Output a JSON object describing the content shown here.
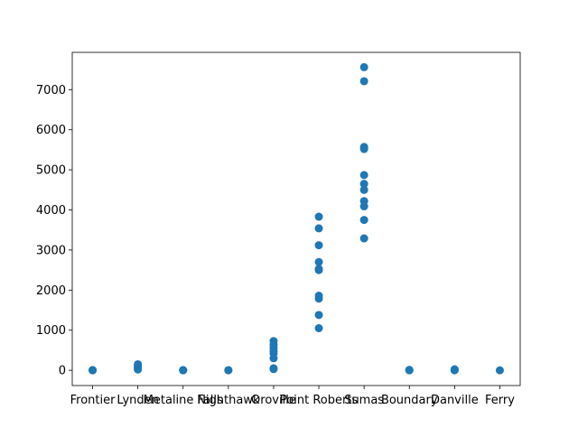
{
  "chart_data": {
    "type": "scatter",
    "categories": [
      "Frontier",
      "Lynden",
      "Metaline Falls",
      "Nighthawk",
      "Oroville",
      "Point Roberts",
      "Sumas",
      "Boundary",
      "Danville",
      "Ferry"
    ],
    "series": [
      {
        "color": "#1f77b4",
        "x": [
          "Frontier",
          "Frontier",
          "Frontier",
          "Lynden",
          "Lynden",
          "Lynden",
          "Lynden",
          "Lynden",
          "Metaline Falls",
          "Metaline Falls",
          "Metaline Falls",
          "Nighthawk",
          "Nighthawk",
          "Oroville",
          "Oroville",
          "Oroville",
          "Oroville",
          "Oroville",
          "Oroville",
          "Oroville",
          "Oroville",
          "Point Roberts",
          "Point Roberts",
          "Point Roberts",
          "Point Roberts",
          "Point Roberts",
          "Point Roberts",
          "Point Roberts",
          "Point Roberts",
          "Point Roberts",
          "Point Roberts",
          "Sumas",
          "Sumas",
          "Sumas",
          "Sumas",
          "Sumas",
          "Sumas",
          "Sumas",
          "Sumas",
          "Sumas",
          "Sumas",
          "Sumas",
          "Boundary",
          "Boundary",
          "Boundary",
          "Danville",
          "Danville",
          "Danville",
          "Ferry"
        ],
        "values": [
          0,
          2,
          5,
          150,
          110,
          70,
          40,
          20,
          0,
          2,
          5,
          0,
          3,
          730,
          640,
          560,
          480,
          420,
          300,
          50,
          30,
          3830,
          3540,
          3120,
          2700,
          2530,
          2500,
          1860,
          1790,
          1380,
          1050,
          7560,
          7210,
          5570,
          5520,
          4870,
          4650,
          4500,
          4220,
          4090,
          3750,
          3290,
          0,
          5,
          10,
          0,
          10,
          25,
          0
        ]
      }
    ],
    "xlim": [
      -0.45,
      9.45
    ],
    "ylim": [
      -380,
      7930
    ],
    "yticks": [
      0,
      1000,
      2000,
      3000,
      4000,
      5000,
      6000,
      7000
    ]
  }
}
